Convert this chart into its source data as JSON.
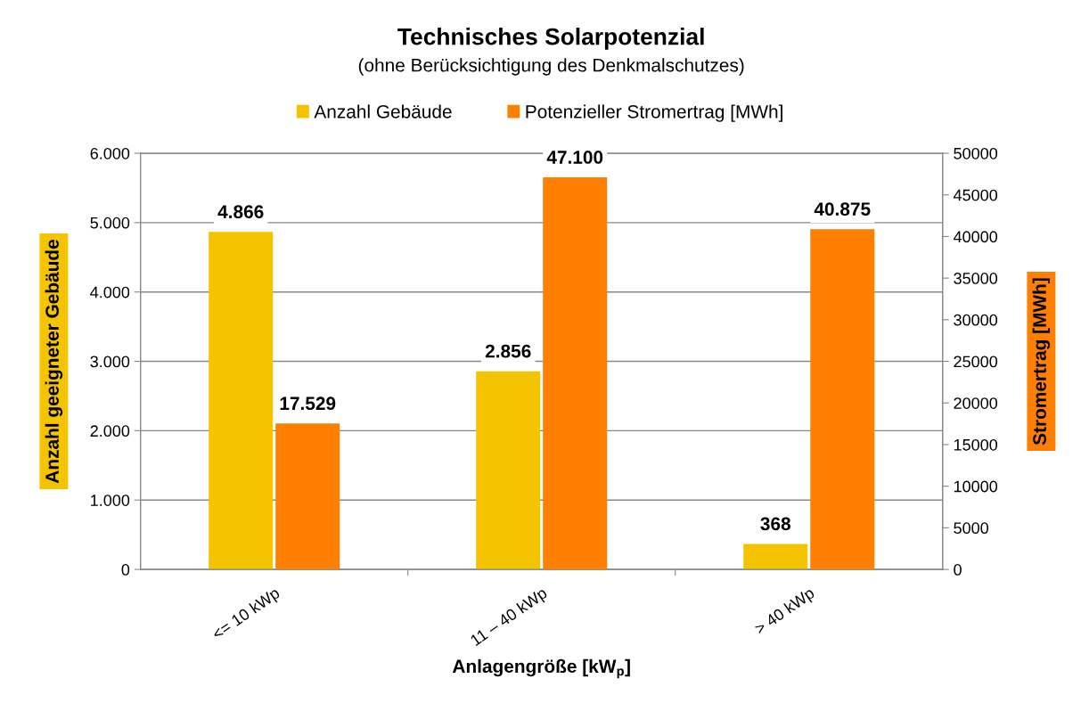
{
  "chart_data": {
    "type": "bar",
    "title": "Technisches Solarpotenzial",
    "subtitle": "(ohne Berücksichtigung des Denkmalschutzes)",
    "xlabel": "Anlagengröße [kW$_{p}$]",
    "ylabel": "Anzahl geeigneter Gebäude",
    "y2label": "Stromertrag [MWh]",
    "categories": [
      "<= 10 kWp",
      "11 – 40 kWp",
      "> 40 kWp"
    ],
    "series": [
      {
        "name": "Anzahl Gebäude",
        "color": "#f5c400",
        "values": [
          4866,
          2856,
          368
        ],
        "value_labels": [
          "4.866",
          "2.856",
          "368"
        ]
      },
      {
        "name": "Potenzieller Stromertrag [MWh]",
        "color": "#ff8000",
        "axis": "y2",
        "values": [
          17529,
          47100,
          40875
        ],
        "value_labels": [
          "17.529",
          "47.100",
          "40.875"
        ]
      }
    ],
    "ylim": [
      0,
      6000
    ],
    "yticks": [
      0,
      {
        "value": 1000,
        "label": "1.000"
      },
      {
        "value": 2000,
        "label": "2.000"
      },
      {
        "value": 3000,
        "label": "3.000"
      },
      {
        "value": 4000,
        "label": "4.000"
      },
      {
        "value": 5000,
        "label": "5.000"
      },
      {
        "value": 6000,
        "label": "6.000"
      }
    ],
    "y2lim": [
      0,
      50000
    ],
    "y2ticks": [
      0,
      5000,
      10000,
      15000,
      20000,
      25000,
      30000,
      35000,
      40000,
      45000,
      50000
    ],
    "grid": "y",
    "legend": "top"
  }
}
